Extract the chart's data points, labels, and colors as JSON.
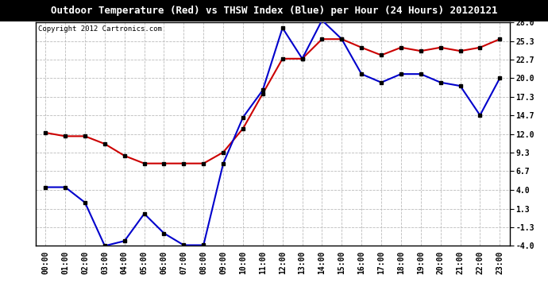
{
  "title": "Outdoor Temperature (Red) vs THSW Index (Blue) per Hour (24 Hours) 20120121",
  "copyright": "Copyright 2012 Cartronics.com",
  "hours": [
    "00:00",
    "01:00",
    "02:00",
    "03:00",
    "04:00",
    "05:00",
    "06:00",
    "07:00",
    "08:00",
    "09:00",
    "10:00",
    "11:00",
    "12:00",
    "13:00",
    "14:00",
    "15:00",
    "16:00",
    "17:00",
    "18:00",
    "19:00",
    "20:00",
    "21:00",
    "22:00",
    "23:00"
  ],
  "red_temp": [
    12.2,
    11.7,
    11.7,
    10.6,
    8.9,
    7.8,
    7.8,
    7.8,
    7.8,
    9.4,
    12.8,
    17.8,
    22.8,
    22.8,
    25.6,
    25.6,
    24.4,
    23.3,
    24.4,
    23.9,
    24.4,
    23.9,
    24.4,
    25.6
  ],
  "blue_thsw": [
    4.4,
    4.4,
    2.2,
    -4.0,
    -3.3,
    0.6,
    -2.2,
    -3.9,
    -3.9,
    7.8,
    14.4,
    18.3,
    27.2,
    22.8,
    28.3,
    25.6,
    20.6,
    19.4,
    20.6,
    20.6,
    19.4,
    18.9,
    14.7,
    20.0
  ],
  "yticks": [
    -4.0,
    -1.3,
    1.3,
    4.0,
    6.7,
    9.3,
    12.0,
    14.7,
    17.3,
    20.0,
    22.7,
    25.3,
    28.0
  ],
  "ylim": [
    -4.0,
    28.0
  ],
  "bg_color": "#ffffff",
  "grid_color": "#bbbbbb",
  "title_bg": "#000000",
  "title_fg": "#ffffff",
  "plot_bg": "#ffffff",
  "red_color": "#cc0000",
  "blue_color": "#0000cc",
  "marker_color": "#000000",
  "title_fontsize": 9.0,
  "copyright_fontsize": 6.5,
  "tick_fontsize": 7.0,
  "linewidth": 1.5,
  "markersize": 3.5
}
